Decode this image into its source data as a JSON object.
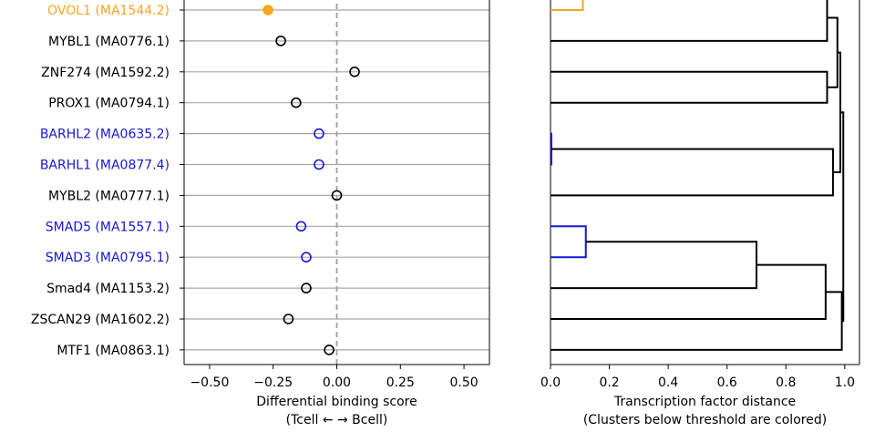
{
  "colors": {
    "orange": "#f5a623",
    "blue": "#1616d8",
    "black": "#000000",
    "grid": "#a8a8a8",
    "zero_line": "#a0a0a0"
  },
  "chart_data": [
    {
      "type": "scatter",
      "xlabel": "Differential binding score",
      "xlabel2": "(Tcell ← → Bcell)",
      "xlim": [
        -0.6,
        0.6
      ],
      "xticks": [
        -0.5,
        -0.25,
        0.0,
        0.25,
        0.5
      ],
      "xtick_labels": [
        "−0.50",
        "−0.25",
        "0.00",
        "0.25",
        "0.50"
      ],
      "grid": "horizontal",
      "reference_line_x": 0,
      "points": [
        {
          "label": "OVOL1 (MA1544.2)",
          "x": -0.27,
          "color": "orange",
          "filled": true
        },
        {
          "label": "MYBL1 (MA0776.1)",
          "x": -0.22,
          "color": "black",
          "filled": false
        },
        {
          "label": "ZNF274 (MA1592.2)",
          "x": 0.07,
          "color": "black",
          "filled": false
        },
        {
          "label": "PROX1 (MA0794.1)",
          "x": -0.16,
          "color": "black",
          "filled": false
        },
        {
          "label": "BARHL2 (MA0635.2)",
          "x": -0.07,
          "color": "blue",
          "filled": false
        },
        {
          "label": "BARHL1 (MA0877.4)",
          "x": -0.07,
          "color": "blue",
          "filled": false
        },
        {
          "label": "MYBL2 (MA0777.1)",
          "x": 0.0,
          "color": "black",
          "filled": false
        },
        {
          "label": "SMAD5 (MA1557.1)",
          "x": -0.14,
          "color": "blue",
          "filled": false
        },
        {
          "label": "SMAD3 (MA0795.1)",
          "x": -0.12,
          "color": "blue",
          "filled": false
        },
        {
          "label": "Smad4 (MA1153.2)",
          "x": -0.12,
          "color": "black",
          "filled": false
        },
        {
          "label": "ZSCAN29 (MA1602.2)",
          "x": -0.19,
          "color": "black",
          "filled": false
        },
        {
          "label": "MTF1 (MA0863.1)",
          "x": -0.03,
          "color": "black",
          "filled": false
        }
      ]
    },
    {
      "type": "dendrogram",
      "xlabel": "Transcription factor distance",
      "xlabel2": "(Clusters below threshold are colored)",
      "xlim": [
        0,
        1.05
      ],
      "xticks": [
        0.0,
        0.2,
        0.4,
        0.6,
        0.8,
        1.0
      ],
      "xtick_labels": [
        "0.0",
        "0.2",
        "0.4",
        "0.6",
        "0.8",
        "1.0"
      ],
      "leaf_order": [
        "OVOL1 (MA1544.2)",
        "MYBL1 (MA0776.1)",
        "ZNF274 (MA1592.2)",
        "PROX1 (MA0794.1)",
        "BARHL2 (MA0635.2)",
        "BARHL1 (MA0877.4)",
        "MYBL2 (MA0777.1)",
        "SMAD5 (MA1557.1)",
        "SMAD3 (MA0795.1)",
        "Smad4 (MA1153.2)",
        "ZSCAN29 (MA1602.2)",
        "MTF1 (MA0863.1)"
      ],
      "merges": [
        {
          "a": {
            "leaf": 0
          },
          "b": {
            "leaf": -1
          },
          "height": 0.11,
          "color": "orange"
        },
        {
          "a": {
            "node": 0
          },
          "b": {
            "leaf": 1
          },
          "height": 0.94,
          "color": "black"
        },
        {
          "a": {
            "leaf": 2
          },
          "b": {
            "leaf": 3
          },
          "height": 0.94,
          "color": "black"
        },
        {
          "a": {
            "node": 1
          },
          "b": {
            "node": 2
          },
          "height": 0.975,
          "color": "black"
        },
        {
          "a": {
            "leaf": 4
          },
          "b": {
            "leaf": 5
          },
          "height": 0.003,
          "color": "blue"
        },
        {
          "a": {
            "node": 4
          },
          "b": {
            "leaf": 6
          },
          "height": 0.96,
          "color": "black"
        },
        {
          "a": {
            "node": 3
          },
          "b": {
            "node": 5
          },
          "height": 0.985,
          "color": "black"
        },
        {
          "a": {
            "leaf": 7
          },
          "b": {
            "leaf": 8
          },
          "height": 0.12,
          "color": "blue"
        },
        {
          "a": {
            "node": 7
          },
          "b": {
            "leaf": 9
          },
          "height": 0.7,
          "color": "black"
        },
        {
          "a": {
            "node": 8
          },
          "b": {
            "leaf": 10
          },
          "height": 0.935,
          "color": "black"
        },
        {
          "a": {
            "node": 9
          },
          "b": {
            "leaf": 11
          },
          "height": 0.99,
          "color": "black"
        },
        {
          "a": {
            "node": 6
          },
          "b": {
            "node": 10
          },
          "height": 0.995,
          "color": "black"
        }
      ]
    }
  ]
}
